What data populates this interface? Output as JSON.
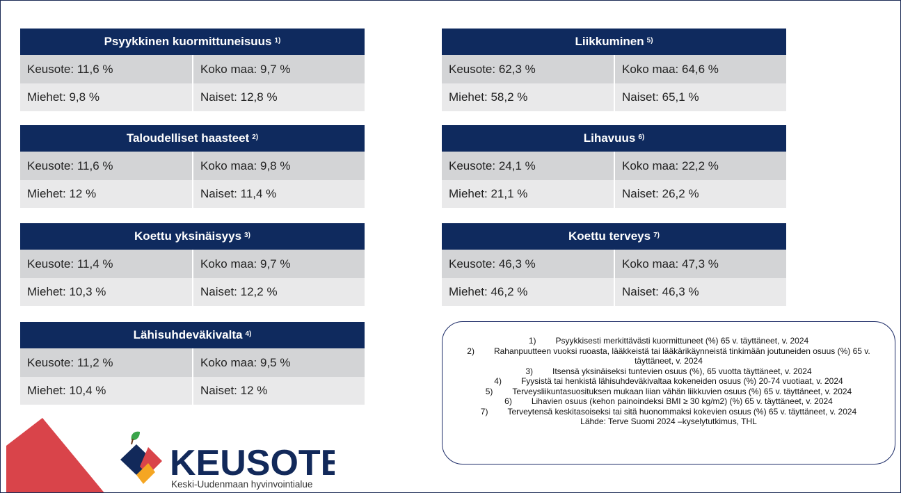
{
  "panels": [
    {
      "title": "Psyykkinen kuormittuneisuus",
      "ref": "1)",
      "rows": [
        [
          "Keusote: 11,6 %",
          "Koko maa: 9,7 %"
        ],
        [
          "Miehet: 9,8 %",
          "Naiset: 12,8 %"
        ]
      ]
    },
    {
      "title": "Taloudelliset haasteet",
      "ref": "2)",
      "rows": [
        [
          "Keusote: 11,6 %",
          "Koko maa: 9,8 %"
        ],
        [
          "Miehet: 12 %",
          "Naiset: 11,4 %"
        ]
      ]
    },
    {
      "title": "Koettu yksinäisyys",
      "ref": "3)",
      "rows": [
        [
          "Keusote: 11,4 %",
          "Koko maa: 9,7 %"
        ],
        [
          "Miehet: 10,3 %",
          "Naiset: 12,2 %"
        ]
      ]
    },
    {
      "title": "Lähisuhdeväkivalta",
      "ref": "4)",
      "rows": [
        [
          "Keusote: 11,2 %",
          "Koko maa: 9,5 %"
        ],
        [
          "Miehet: 10,4 %",
          "Naiset: 12 %"
        ]
      ]
    },
    {
      "title": "Liikkuminen",
      "ref": "5)",
      "rows": [
        [
          "Keusote: 62,3 %",
          "Koko maa: 64,6 %"
        ],
        [
          "Miehet: 58,2 %",
          "Naiset: 65,1 %"
        ]
      ]
    },
    {
      "title": "Lihavuus",
      "ref": "6)",
      "rows": [
        [
          "Keusote: 24,1 %",
          "Koko maa: 22,2 %"
        ],
        [
          "Miehet: 21,1 %",
          "Naiset: 26,2 %"
        ]
      ]
    },
    {
      "title": "Koettu terveys",
      "ref": "7)",
      "rows": [
        [
          "Keusote: 46,3 %",
          "Koko maa: 47,3 %"
        ],
        [
          "Miehet: 46,2 %",
          "Naiset: 46,3 %"
        ]
      ]
    }
  ],
  "footnotes": [
    {
      "num": "1)",
      "text": "Psyykkisesti merkittävästi kuormittuneet (%) 65 v. täyttäneet, v. 2024"
    },
    {
      "num": "2)",
      "text": "Rahanpuutteen vuoksi ruoasta, lääkkeistä tai lääkärikäynneistä tinkimään joutuneiden osuus (%) 65 v. täyttäneet, v. 2024"
    },
    {
      "num": "3)",
      "text": "Itsensä yksinäiseksi tuntevien osuus (%), 65 vuotta täyttäneet, v. 2024"
    },
    {
      "num": "4)",
      "text": "Fyysistä tai henkistä lähisuhdeväkivaltaa kokeneiden osuus (%) 20-74 vuotiaat, v. 2024"
    },
    {
      "num": "5)",
      "text": "Terveysliikuntasuosituksen mukaan liian vähän liikkuvien osuus (%) 65 v. täyttäneet, v. 2024"
    },
    {
      "num": "6)",
      "text": "Lihavien osuus (kehon painoindeksi BMI ≥ 30 kg/m2) (%) 65 v. täyttäneet, v. 2024"
    },
    {
      "num": "7)",
      "text": "Terveytensä keskitasoiseksi tai sitä huonommaksi kokevien osuus (%) 65 v. täyttäneet,  v. 2024"
    }
  ],
  "source": "Lähde: Terve Suomi 2024 –kyselytutkimus, THL",
  "logo": {
    "name": "KEUSOTE",
    "tagline": "Keski-Uudenmaan hyvinvointialue"
  }
}
